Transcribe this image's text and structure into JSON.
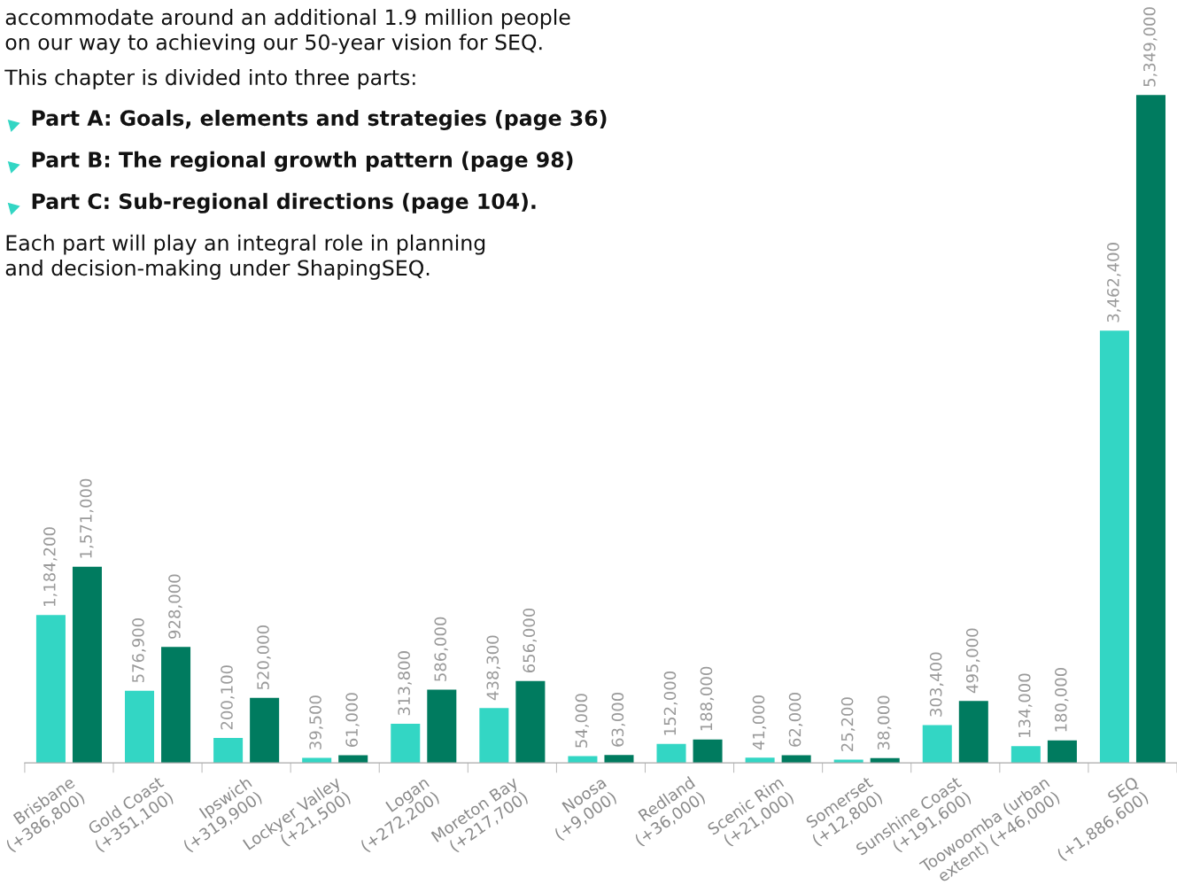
{
  "chart_data": {
    "type": "bar",
    "annotations": [
      "accommodate around an additional 1.9 million people\non our way to achieving our 50-year vision for SEQ.",
      "This chapter is divided into three parts:",
      "Part A: Goals, elements and strategies (page 36)",
      "Part B: The regional growth pattern (page 98)",
      "Part C: Sub-regional directions (page 104).",
      "Each part will play an integral role in planning\nand decision-making under ShapingSEQ."
    ],
    "categories": [
      "Brisbane\n(+386,800)",
      "Gold Coast\n(+351,100)",
      "Ipswich\n(+319,900)",
      "Lockyer Valley\n(+21,500)",
      "Logan\n(+272,200)",
      "Moreton Bay\n(+217,700)",
      "Noosa\n(+9,000)",
      "Redland\n(+36,000)",
      "Scenic Rim\n(+21,000)",
      "Somerset\n(+12,800)",
      "Sunshine Coast\n(+191,600)",
      "Toowoomba (urban\nextent) (+46,000)",
      "SEQ\n(+1,886,600)"
    ],
    "series": [
      {
        "color": "#33d6c4",
        "values": [
          1184200,
          576900,
          200100,
          39500,
          313800,
          438300,
          54000,
          152000,
          41000,
          25200,
          303400,
          134000,
          3462400
        ],
        "value_labels": [
          "1,184,200",
          "576,900",
          "200,100",
          "39,500",
          "313,800",
          "438,300",
          "54,000",
          "152,000",
          "41,000",
          "25,200",
          "303,400",
          "134,000",
          "3,462,400"
        ]
      },
      {
        "color": "#007b5f",
        "values": [
          1571000,
          928000,
          520000,
          61000,
          586000,
          656000,
          63000,
          188000,
          62000,
          38000,
          495000,
          180000,
          5349000
        ],
        "value_labels": [
          "1,571,000",
          "928,000",
          "520,000",
          "61,000",
          "586,000",
          "656,000",
          "63,000",
          "188,000",
          "62,000",
          "38,000",
          "495,000",
          "180,000",
          "5,349,000"
        ]
      }
    ],
    "grid": false,
    "legend": false
  }
}
